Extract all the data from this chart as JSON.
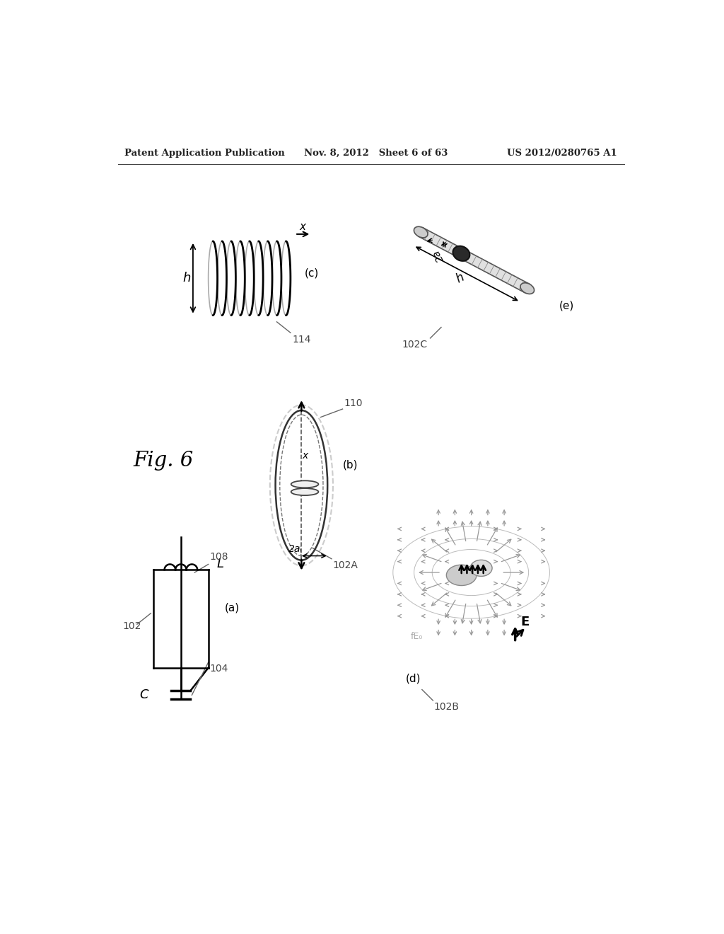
{
  "header_left": "Patent Application Publication",
  "header_mid": "Nov. 8, 2012   Sheet 6 of 63",
  "header_right": "US 2012/0280765 A1",
  "fig_label": "Fig. 6",
  "background_color": "#ffffff",
  "text_color": "#000000"
}
